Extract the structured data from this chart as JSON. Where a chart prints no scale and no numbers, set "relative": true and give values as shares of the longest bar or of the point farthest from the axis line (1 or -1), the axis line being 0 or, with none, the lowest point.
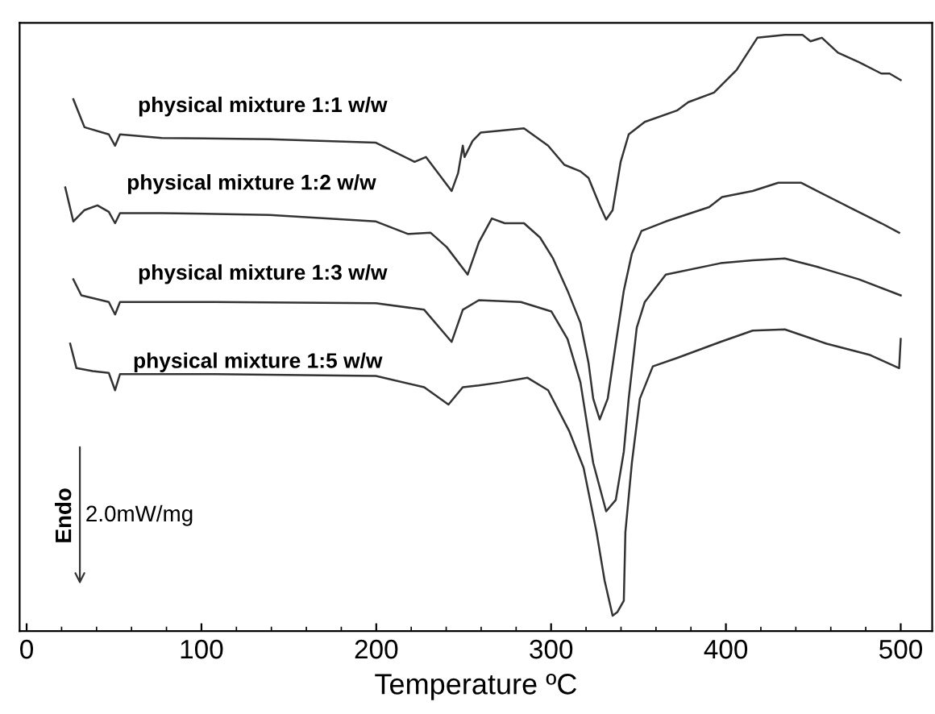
{
  "chart_data": {
    "type": "line",
    "xlabel": "Temperature ºC",
    "relative": true,
    "xlim": [
      -4,
      518
    ],
    "xticks": [
      0,
      100,
      200,
      300,
      400,
      500
    ],
    "tick_labels": "x",
    "grid": false,
    "legend": false,
    "marker": "none",
    "line_style": "solid",
    "annotations": [
      "Endo",
      "2.0mW/mg"
    ],
    "series": [
      {
        "name": "physical mixture 1:1 w/w",
        "color": "#333333",
        "x": [
          26.7,
          33.1,
          47.0,
          50.6,
          53.4,
          77.3,
          139.0,
          199.8,
          221.9,
          228.4,
          243.1,
          246.8,
          249.5,
          250.5,
          255.1,
          259.7,
          284.5,
          298.3,
          307.6,
          316.8,
          321.4,
          327.8,
          331.5,
          335.2,
          339.8,
          344.4,
          353.6,
          372.0,
          378.5,
          393.2,
          406.1,
          418.0,
          433.7,
          443.8,
          448.4,
          454.9,
          464.1,
          476.1,
          488.9,
          493.6,
          500.0
        ],
        "values": [
          0.892,
          0.845,
          0.833,
          0.814,
          0.833,
          0.827,
          0.825,
          0.819,
          0.787,
          0.795,
          0.738,
          0.768,
          0.814,
          0.795,
          0.822,
          0.836,
          0.843,
          0.814,
          0.782,
          0.771,
          0.76,
          0.714,
          0.69,
          0.706,
          0.787,
          0.833,
          0.854,
          0.873,
          0.887,
          0.903,
          0.941,
          0.995,
          1.0,
          1.0,
          0.989,
          0.995,
          0.97,
          0.954,
          0.935,
          0.935,
          0.924
        ]
      },
      {
        "name": "physical mixture 1:2 w/w",
        "color": "#333333",
        "x": [
          22.1,
          26.7,
          33.1,
          40.5,
          47.0,
          50.6,
          53.4,
          77.3,
          139.0,
          199.8,
          218.2,
          231.1,
          240.3,
          252.3,
          258.7,
          266.1,
          273.5,
          284.5,
          293.7,
          301.1,
          309.4,
          316.8,
          321.4,
          324.1,
          327.8,
          332.4,
          337.0,
          341.6,
          346.2,
          351.7,
          365.6,
          390.4,
          397.8,
          415.3,
          430.0,
          442.9,
          450.3,
          470.5,
          488.9,
          499.1
        ],
        "values": [
          0.744,
          0.687,
          0.706,
          0.714,
          0.703,
          0.684,
          0.701,
          0.701,
          0.698,
          0.687,
          0.666,
          0.668,
          0.644,
          0.598,
          0.652,
          0.692,
          0.684,
          0.684,
          0.66,
          0.625,
          0.571,
          0.517,
          0.45,
          0.39,
          0.355,
          0.39,
          0.482,
          0.571,
          0.633,
          0.671,
          0.687,
          0.711,
          0.728,
          0.738,
          0.752,
          0.752,
          0.741,
          0.711,
          0.684,
          0.668
        ]
      },
      {
        "name": "physical mixture 1:3 w/w",
        "color": "#333333",
        "x": [
          26.7,
          31.3,
          47.0,
          50.6,
          53.4,
          107.7,
          199.8,
          227.4,
          243.1,
          249.5,
          258.7,
          282.7,
          300.2,
          309.4,
          316.8,
          324.1,
          331.5,
          337.0,
          341.6,
          344.4,
          349.0,
          353.6,
          365.6,
          396.9,
          415.3,
          433.7,
          452.1,
          476.1,
          500.0
        ],
        "values": [
          0.59,
          0.563,
          0.552,
          0.531,
          0.552,
          0.552,
          0.55,
          0.539,
          0.485,
          0.539,
          0.555,
          0.552,
          0.536,
          0.49,
          0.417,
          0.282,
          0.201,
          0.22,
          0.301,
          0.39,
          0.509,
          0.552,
          0.598,
          0.617,
          0.622,
          0.625,
          0.611,
          0.59,
          0.563
        ]
      },
      {
        "name": "physical mixture 1:5 w/w",
        "color": "#333333",
        "x": [
          24.9,
          28.5,
          37.8,
          47.0,
          50.6,
          53.4,
          107.7,
          199.8,
          227.4,
          241.3,
          249.5,
          258.7,
          270.7,
          286.4,
          298.3,
          310.3,
          318.6,
          326.0,
          330.6,
          335.2,
          337.9,
          341.6,
          342.5,
          346.2,
          350.8,
          358.2,
          372.0,
          396.9,
          415.3,
          433.7,
          457.6,
          482.5,
          499.1,
          500.0
        ],
        "values": [
          0.482,
          0.441,
          0.436,
          0.433,
          0.404,
          0.431,
          0.431,
          0.428,
          0.409,
          0.38,
          0.409,
          0.412,
          0.417,
          0.425,
          0.404,
          0.336,
          0.274,
          0.166,
          0.085,
          0.026,
          0.032,
          0.051,
          0.166,
          0.282,
          0.39,
          0.444,
          0.458,
          0.485,
          0.504,
          0.506,
          0.482,
          0.463,
          0.441,
          0.49
        ]
      }
    ]
  }
}
